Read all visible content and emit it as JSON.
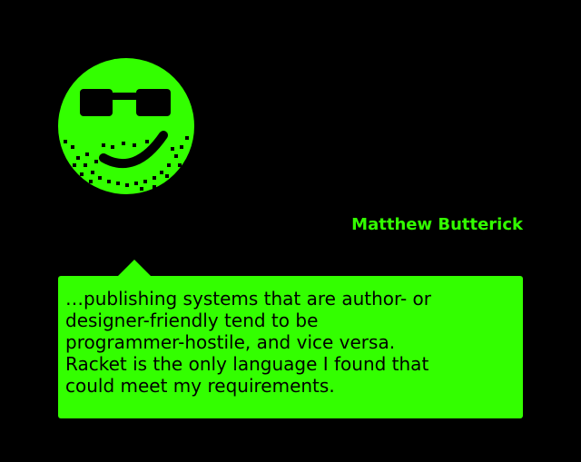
{
  "colors": {
    "background": "#000000",
    "accent": "#33ff00",
    "text_on_accent": "#000000"
  },
  "avatar": {
    "icon": "smiley-sunglasses-icon"
  },
  "author": {
    "name": "Matthew Butterick"
  },
  "quote": {
    "text": "…publishing systems that are author- or\ndesigner-friendly tend to be\nprogrammer-hostile, and vice versa.\nRacket is the only language I found that\ncould meet my requirements."
  }
}
